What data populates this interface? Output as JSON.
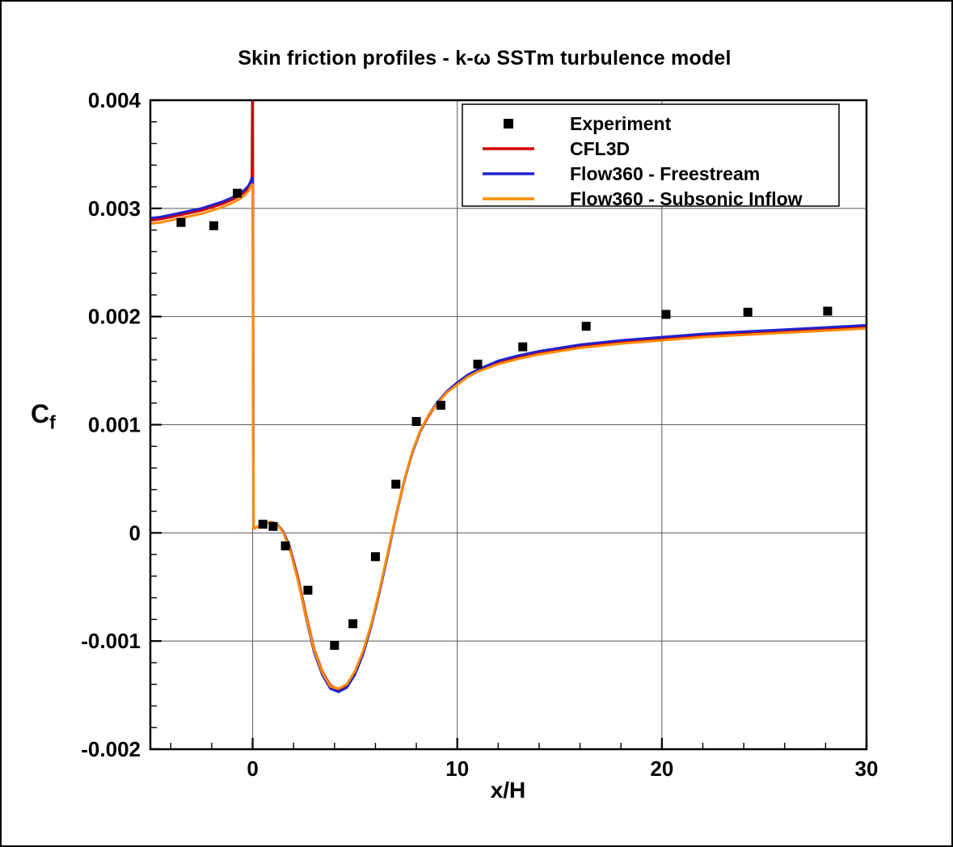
{
  "chart_data": {
    "type": "line",
    "title": "Skin friction profiles - k-ω SSTm turbulence model",
    "xlabel": "x/H",
    "ylabel": "Cf",
    "ylabel_main": "C",
    "ylabel_sub": "f",
    "xlim": [
      -5,
      30
    ],
    "ylim": [
      -0.002,
      0.004
    ],
    "xticks": [
      0,
      10,
      20,
      30
    ],
    "xtick_labels": [
      "0",
      "10",
      "20",
      "30"
    ],
    "yticks": [
      -0.002,
      -0.001,
      0,
      0.001,
      0.002,
      0.003,
      0.004
    ],
    "ytick_labels": [
      "-0.002",
      "-0.001",
      "0",
      "0.001",
      "0.002",
      "0.003",
      "0.004"
    ],
    "x_minor_step": 2,
    "y_minor_step": 0.0002,
    "grid": true,
    "grid_color": "#5a5a5a",
    "axis_color": "#000000",
    "legend_position": "top-right-inside",
    "series": [
      {
        "name": "Experiment",
        "type": "scatter",
        "marker": "square",
        "color": "#000000",
        "x": [
          -3.5,
          -1.9,
          -0.75,
          0.5,
          1.0,
          1.6,
          2.7,
          4.0,
          4.9,
          6.0,
          7.0,
          8.0,
          9.2,
          11.0,
          13.2,
          16.3,
          20.2,
          24.2,
          28.1
        ],
        "y": [
          0.00287,
          0.00284,
          0.00314,
          8e-05,
          6e-05,
          -0.00012,
          -0.00053,
          -0.00104,
          -0.00084,
          -0.00022,
          0.00045,
          0.00103,
          0.00118,
          0.00156,
          0.00172,
          0.00191,
          0.00202,
          0.00204,
          0.00205
        ]
      },
      {
        "name": "CFL3D",
        "type": "line",
        "color": "#d40000",
        "x": [
          -5,
          -4.5,
          -4,
          -3.5,
          -3,
          -2.5,
          -2,
          -1.5,
          -1,
          -0.7,
          -0.4,
          -0.2,
          -0.1,
          -0.04,
          0,
          0.04,
          0.3,
          0.6,
          0.9,
          1.2,
          1.5,
          1.8,
          2.2,
          2.6,
          3,
          3.4,
          3.8,
          4.2,
          4.6,
          5,
          5.4,
          5.8,
          6.2,
          6.6,
          7,
          7.4,
          7.8,
          8.2,
          8.6,
          9,
          9.5,
          10,
          10.5,
          11,
          12,
          13,
          14,
          15,
          16,
          18,
          20,
          22,
          24,
          26,
          28,
          30
        ],
        "y": [
          0.00289,
          0.0029,
          0.00292,
          0.00294,
          0.00296,
          0.00298,
          0.00301,
          0.00304,
          0.00308,
          0.00311,
          0.00315,
          0.00319,
          0.00323,
          0.0033,
          0.0047,
          4e-05,
          6e-05,
          9e-05,
          0.0001,
          8e-05,
          1e-05,
          -0.00012,
          -0.0004,
          -0.00075,
          -0.00107,
          -0.00128,
          -0.00141,
          -0.00145,
          -0.00141,
          -0.00129,
          -0.0011,
          -0.00085,
          -0.00054,
          -0.0002,
          0.00016,
          0.00048,
          0.00074,
          0.00094,
          0.00108,
          0.00119,
          0.0013,
          0.00138,
          0.00145,
          0.0015,
          0.00158,
          0.00163,
          0.00167,
          0.0017,
          0.00173,
          0.00177,
          0.0018,
          0.00183,
          0.00185,
          0.00187,
          0.00189,
          0.00191
        ]
      },
      {
        "name": "Flow360 - Freestream",
        "type": "line",
        "color": "#2222cc",
        "x": [
          -5,
          -4.5,
          -4,
          -3.5,
          -3,
          -2.5,
          -2,
          -1.5,
          -1,
          -0.7,
          -0.4,
          -0.2,
          -0.1,
          -0.04,
          0,
          0.04,
          0.3,
          0.6,
          0.9,
          1.2,
          1.5,
          1.8,
          2.2,
          2.6,
          3,
          3.4,
          3.8,
          4.2,
          4.6,
          5,
          5.4,
          5.8,
          6.2,
          6.6,
          7,
          7.4,
          7.8,
          8.2,
          8.6,
          9,
          9.5,
          10,
          10.5,
          11,
          12,
          13,
          14,
          15,
          16,
          18,
          20,
          22,
          24,
          26,
          28,
          30
        ],
        "y": [
          0.00291,
          0.00292,
          0.00294,
          0.00296,
          0.00298,
          0.003,
          0.00303,
          0.00306,
          0.0031,
          0.00313,
          0.00317,
          0.00321,
          0.00325,
          0.00328,
          0.00328,
          4e-05,
          6e-05,
          9e-05,
          0.0001,
          8e-05,
          1e-05,
          -0.00013,
          -0.00042,
          -0.00078,
          -0.0011,
          -0.00131,
          -0.00144,
          -0.00147,
          -0.00143,
          -0.00131,
          -0.00112,
          -0.00086,
          -0.00055,
          -0.00021,
          0.00015,
          0.00047,
          0.00074,
          0.00094,
          0.00109,
          0.0012,
          0.00131,
          0.00139,
          0.00146,
          0.00151,
          0.00159,
          0.00164,
          0.00168,
          0.00171,
          0.00174,
          0.00178,
          0.00181,
          0.00184,
          0.00186,
          0.00188,
          0.0019,
          0.00192
        ]
      },
      {
        "name": "Flow360 - Subsonic Inflow",
        "type": "line",
        "color": "#ff8c00",
        "x": [
          -5,
          -4.5,
          -4,
          -3.5,
          -3,
          -2.5,
          -2,
          -1.5,
          -1,
          -0.7,
          -0.4,
          -0.2,
          -0.1,
          -0.04,
          0,
          0.04,
          0.3,
          0.6,
          0.9,
          1.2,
          1.5,
          1.8,
          2.2,
          2.6,
          3,
          3.4,
          3.8,
          4.2,
          4.6,
          5,
          5.4,
          5.8,
          6.2,
          6.6,
          7,
          7.4,
          7.8,
          8.2,
          8.6,
          9,
          9.5,
          10,
          10.5,
          11,
          12,
          13,
          14,
          15,
          16,
          18,
          20,
          22,
          24,
          26,
          28,
          30
        ],
        "y": [
          0.00286,
          0.00287,
          0.00289,
          0.00291,
          0.00293,
          0.00295,
          0.00298,
          0.00301,
          0.00305,
          0.00308,
          0.00312,
          0.00316,
          0.0032,
          0.00322,
          0.00322,
          4e-05,
          6e-05,
          9e-05,
          0.0001,
          8e-05,
          0,
          -0.00014,
          -0.00043,
          -0.00077,
          -0.00108,
          -0.00129,
          -0.00142,
          -0.00144,
          -0.0014,
          -0.00128,
          -0.00109,
          -0.00084,
          -0.00053,
          -0.00019,
          0.00016,
          0.00048,
          0.00075,
          0.00095,
          0.00109,
          0.00119,
          0.0013,
          0.00137,
          0.00144,
          0.00149,
          0.00156,
          0.00161,
          0.00165,
          0.00168,
          0.00171,
          0.00175,
          0.00178,
          0.00181,
          0.00183,
          0.00185,
          0.00187,
          0.00189
        ]
      }
    ]
  }
}
